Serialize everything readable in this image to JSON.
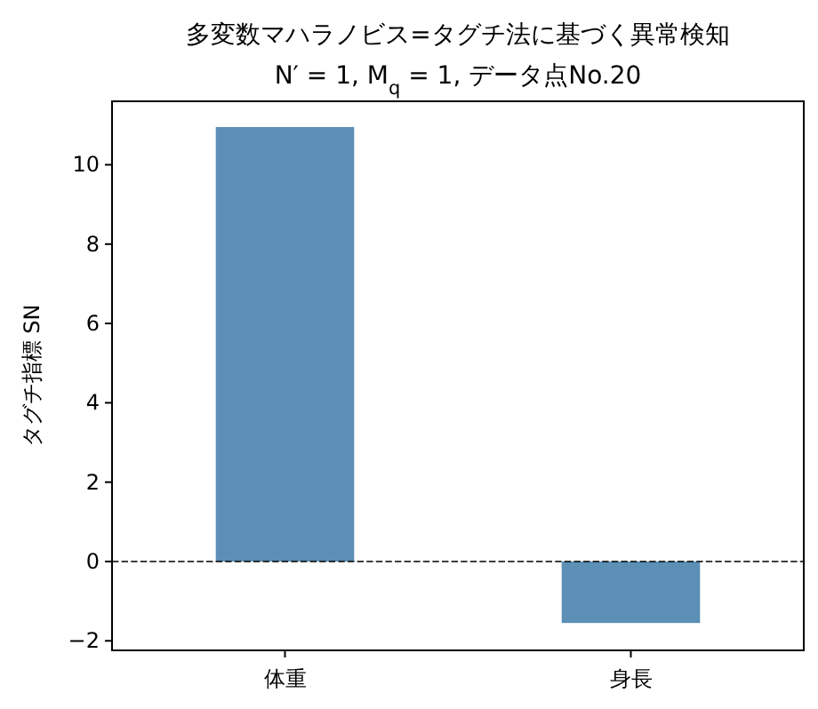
{
  "chart_data": {
    "type": "bar",
    "title": "多変数マハラノビス=タグチ法に基づく異常検知",
    "subtitle": "N′ = 1,  M$_{q}$ = 1,  データ点No.20",
    "ylabel": "タグチ指標 SN",
    "categories": [
      "体重",
      "身長"
    ],
    "values": [
      10.95,
      -1.55
    ],
    "color": "#5b8fb5",
    "ylim": [
      -2.24,
      11.6
    ],
    "yticks": [
      -2,
      0,
      2,
      4,
      6,
      8,
      10
    ],
    "ref_lines": [
      {
        "axis": "y",
        "value": 0,
        "color": "#000000",
        "line_style": "dashed"
      }
    ],
    "grid": false
  }
}
